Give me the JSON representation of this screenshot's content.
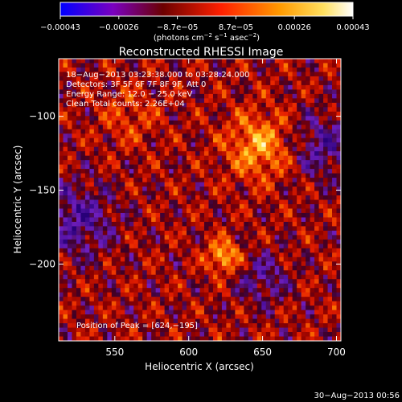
{
  "chart_data": {
    "type": "heatmap",
    "title": "Reconstructed RHESSI Image",
    "xlabel": "Heliocentric X (arcsec)",
    "ylabel": "Heliocentric Y (arcsec)",
    "xlim": [
      512,
      703
    ],
    "ylim": [
      -252,
      -61
    ],
    "x_ticks": [
      550,
      600,
      650,
      700
    ],
    "y_ticks": [
      -100,
      -150,
      -200
    ],
    "colorbar": {
      "label": "(photons cm",
      "label_exp1": "−2",
      "label_mid": " s",
      "label_exp2": "−1",
      "label_mid2": " asec",
      "label_exp3": "−2",
      "label_end": ")",
      "ticks": [
        "−0.00043",
        "−0.00026",
        "−8.7e−05",
        "8.7e−05",
        "0.00026",
        "0.00043"
      ],
      "range": [
        -0.00043,
        0.00043
      ]
    },
    "peak": [
      624,
      -195
    ],
    "annotations": [
      "18−Aug−2013 03:23:38.000 to 03:28:24.000",
      "Detectors: 3F 5F 6F 7F 8F 9F, Att 0",
      "Energy Range: 12.0 − 25.0 keV",
      "Clean     Total counts: 2.26E+04",
      "Position of Peak = [624,−195]"
    ]
  },
  "footer": {
    "timestamp": "30−Aug−2013 00:56"
  }
}
